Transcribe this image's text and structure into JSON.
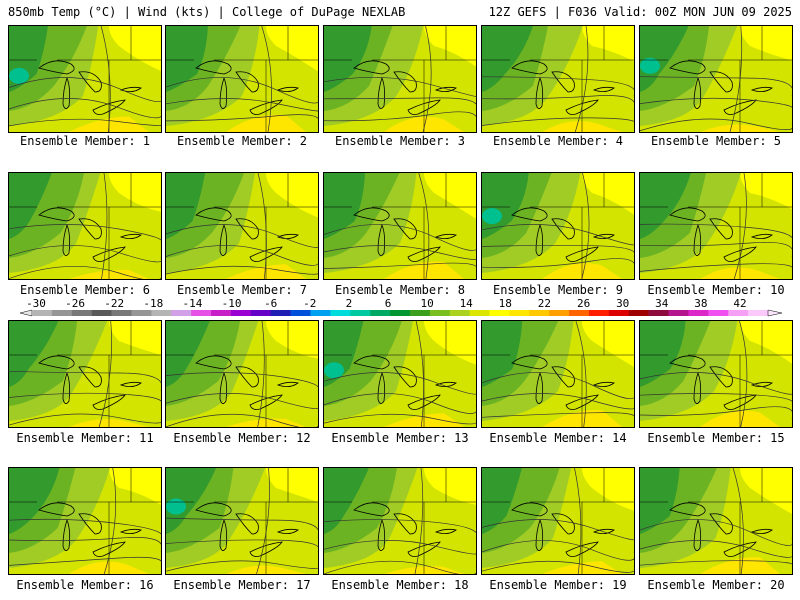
{
  "header": {
    "left": "850mb Temp (°C) | Wind (kts) | College of DuPage NEXLAB",
    "right": "12Z GEFS | F036 Valid: 00Z MON JUN 09 2025"
  },
  "members": [
    {
      "label": "Ensemble Member: 1"
    },
    {
      "label": "Ensemble Member: 2"
    },
    {
      "label": "Ensemble Member: 3"
    },
    {
      "label": "Ensemble Member: 4"
    },
    {
      "label": "Ensemble Member: 5"
    },
    {
      "label": "Ensemble Member: 6"
    },
    {
      "label": "Ensemble Member: 7"
    },
    {
      "label": "Ensemble Member: 8"
    },
    {
      "label": "Ensemble Member: 9"
    },
    {
      "label": "Ensemble Member: 10"
    },
    {
      "label": "Ensemble Member: 11"
    },
    {
      "label": "Ensemble Member: 12"
    },
    {
      "label": "Ensemble Member: 13"
    },
    {
      "label": "Ensemble Member: 14"
    },
    {
      "label": "Ensemble Member: 15"
    },
    {
      "label": "Ensemble Member: 16"
    },
    {
      "label": "Ensemble Member: 17"
    },
    {
      "label": "Ensemble Member: 18"
    },
    {
      "label": "Ensemble Member: 19"
    },
    {
      "label": "Ensemble Member: 20"
    }
  ],
  "colorbar": {
    "ticks": [
      "-30",
      "-26",
      "-22",
      "-18",
      "-14",
      "-10",
      "-6",
      "-2",
      "2",
      "6",
      "10",
      "14",
      "18",
      "22",
      "26",
      "30",
      "34",
      "38",
      "42"
    ],
    "colors": [
      "#b4b4b4",
      "#969696",
      "#787878",
      "#5a5a5a",
      "#787878",
      "#969696",
      "#b4b4b4",
      "#d2a0e6",
      "#e650e6",
      "#c81ec8",
      "#9b00d2",
      "#6400c8",
      "#1e1eb4",
      "#0050dc",
      "#00a0f0",
      "#00dcdc",
      "#00c8a0",
      "#00aa64",
      "#009632",
      "#3ca01e",
      "#78be1e",
      "#aad21e",
      "#dce600",
      "#ffff00",
      "#ffe600",
      "#ffc800",
      "#ffa000",
      "#ff6400",
      "#ff1e00",
      "#dc0000",
      "#a00000",
      "#8c0a3c",
      "#b4148c",
      "#dc28c8",
      "#f050f0",
      "#f5a0f5",
      "#fac8fa"
    ]
  },
  "map_colors": {
    "darkgreen": "#339a2e",
    "green": "#6cb323",
    "lightgreen": "#a0cc25",
    "yellowgreen": "#d2e400",
    "yellow": "#ffff00",
    "gold": "#ffe600",
    "orange": "#ffc800",
    "teal": "#00c090"
  }
}
